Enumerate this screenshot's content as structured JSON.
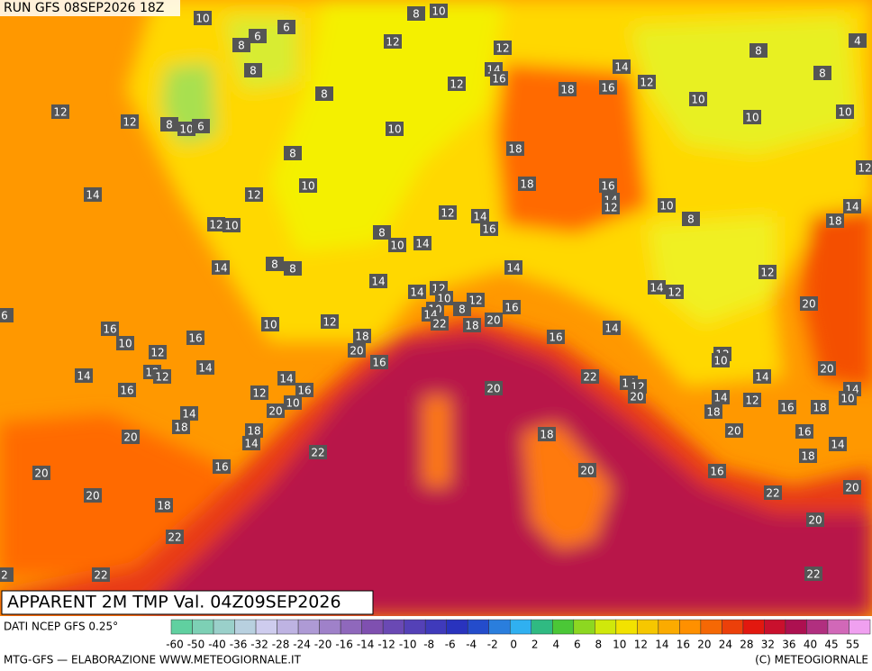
{
  "header": {
    "run": "RUN GFS 08SEP2026 18Z",
    "title": "APPARENT 2M TMP Val. 04Z09SEP2026"
  },
  "map": {
    "labels": [
      10,
      8,
      10,
      6,
      6,
      8,
      12,
      12,
      4,
      8,
      14,
      16,
      12,
      14,
      8,
      8,
      18,
      16,
      12,
      8,
      10,
      12,
      12,
      8,
      10,
      6,
      10,
      10,
      10,
      8,
      18,
      12,
      10,
      18,
      16,
      14,
      12,
      14,
      12,
      10,
      14,
      12,
      14,
      18,
      16,
      8,
      12,
      10,
      8,
      10,
      14,
      14,
      8,
      8,
      14,
      12,
      14,
      14,
      12,
      14,
      12,
      10,
      12,
      20,
      6,
      10,
      8,
      16,
      12,
      10,
      20,
      14,
      22,
      18,
      14,
      16,
      16,
      10,
      18,
      16,
      12,
      20,
      12,
      10,
      16,
      20,
      14,
      12,
      12,
      14,
      14,
      22,
      14,
      14,
      12,
      20,
      16,
      12,
      16,
      10,
      14,
      12,
      20,
      14,
      10,
      20,
      14,
      16,
      18,
      18,
      18,
      18,
      20,
      16,
      18,
      14,
      20,
      14,
      18,
      16,
      22,
      20,
      20,
      16,
      20,
      22,
      20,
      18,
      20,
      22,
      22,
      22,
      2
    ]
  },
  "legend": {
    "source": "DATI NCEP GFS 0.25°",
    "ticks": [
      -60,
      -50,
      -40,
      -36,
      -32,
      -28,
      -24,
      -20,
      -16,
      -14,
      -12,
      -10,
      -8,
      -6,
      -4,
      -2,
      0,
      2,
      4,
      6,
      8,
      10,
      12,
      14,
      16,
      20,
      24,
      28,
      32,
      36,
      40,
      45,
      55
    ]
  },
  "footer": {
    "left": "MTG-GFS — ELABORAZIONE WWW.METEOGIORNALE.IT",
    "right": "(C) METEOGIORNALE"
  }
}
